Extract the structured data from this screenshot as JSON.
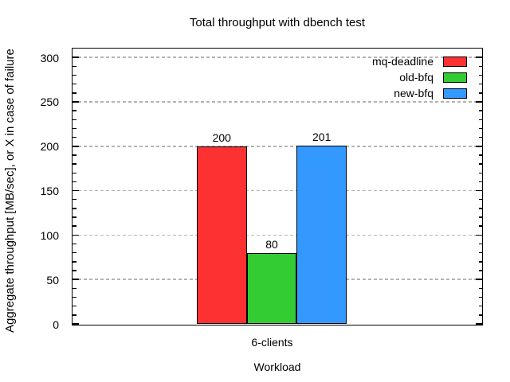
{
  "title": "Total throughput with dbench test",
  "y_axis": {
    "label": "Aggregate throughput [MB/sec], or X in case of failure",
    "tick_labels": [
      "0",
      "50",
      "100",
      "150",
      "200",
      "250",
      "300"
    ]
  },
  "x_axis": {
    "label": "Workload",
    "tick_labels": [
      "6-clients"
    ]
  },
  "legend": {
    "position": "top-right-inside",
    "entries": [
      {
        "label": "mq-deadline",
        "color": "#fd3131"
      },
      {
        "label": "old-bfq",
        "color": "#33cc33"
      },
      {
        "label": "new-bfq",
        "color": "#3399ff"
      }
    ]
  },
  "colors": {
    "background": "#ffffff",
    "frame": "#000000",
    "grid": "#b3b3b3",
    "text": "#000000"
  },
  "chart_data": {
    "type": "bar",
    "title": "Total throughput with dbench test",
    "categories": [
      "6-clients"
    ],
    "series": [
      {
        "name": "mq-deadline",
        "values": [
          200
        ],
        "color": "#fd3131"
      },
      {
        "name": "old-bfq",
        "values": [
          80
        ],
        "color": "#33cc33"
      },
      {
        "name": "new-bfq",
        "values": [
          201
        ],
        "color": "#3399ff"
      }
    ],
    "xlabel": "Workload",
    "ylabel": "Aggregate throughput [MB/sec], or X in case of failure",
    "ylim": [
      0,
      310
    ],
    "yticks": [
      0,
      50,
      100,
      150,
      200,
      250,
      300
    ],
    "y_minor_tick_step": 10,
    "grid": "horizontal-dashed-at-major-ticks",
    "legend_position": "top-right inside plot",
    "bar_value_labels": [
      200,
      80,
      201
    ]
  }
}
